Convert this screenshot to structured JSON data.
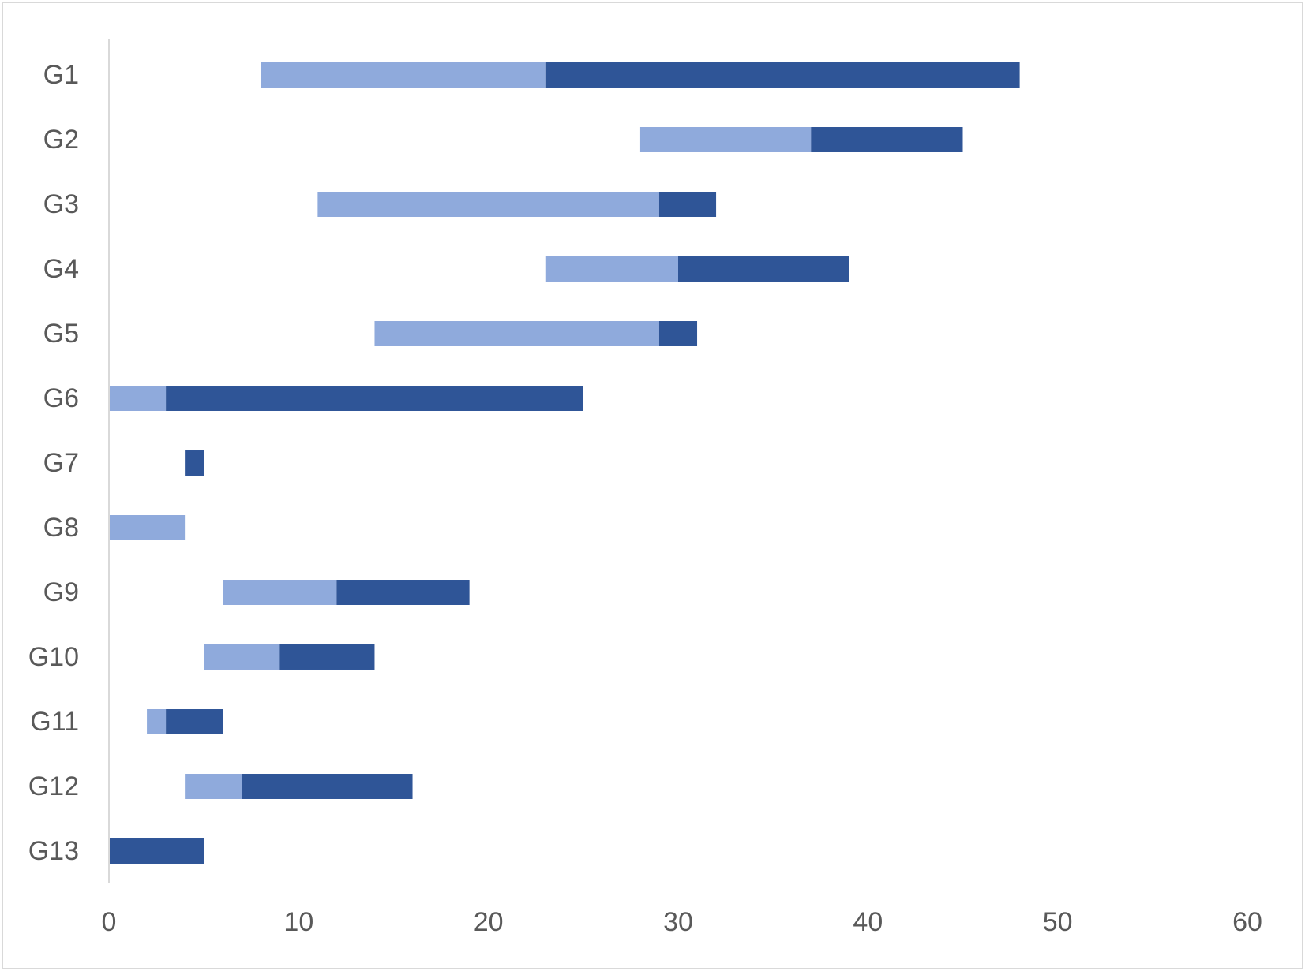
{
  "chart_data": {
    "type": "bar",
    "orientation": "horizontal",
    "stacked": true,
    "categories": [
      "G1",
      "G2",
      "G3",
      "G4",
      "G5",
      "G6",
      "G7",
      "G8",
      "G9",
      "G10",
      "G11",
      "G12",
      "G13"
    ],
    "series": [
      {
        "values": [
          8,
          28,
          11,
          23,
          14,
          0,
          4,
          0,
          6,
          5,
          2,
          4,
          0
        ],
        "color": "none"
      },
      {
        "values": [
          15,
          9,
          18,
          7,
          15,
          3,
          0,
          4,
          6,
          4,
          1,
          3,
          0
        ],
        "color": "#8faadc"
      },
      {
        "values": [
          25,
          8,
          3,
          9,
          2,
          22,
          1,
          0,
          7,
          5,
          3,
          9,
          5
        ],
        "color": "#2f5597"
      }
    ],
    "xlim": [
      0,
      60
    ],
    "xticks": [
      "0",
      "10",
      "20",
      "30",
      "40",
      "50",
      "60"
    ],
    "title": "",
    "xlabel": "",
    "ylabel": "",
    "grid": false,
    "legend": "none",
    "axis_color": "#d9d9d9",
    "text_color": "#595959"
  }
}
